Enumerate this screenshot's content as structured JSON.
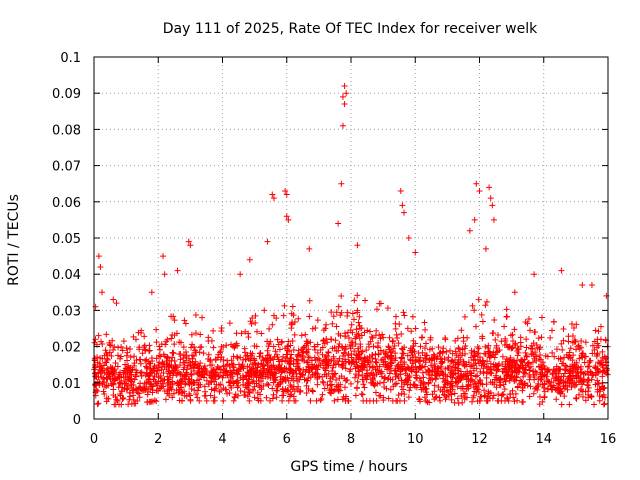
{
  "chart_data": {
    "type": "scatter",
    "title": "Day 111 of 2025, Rate Of TEC Index for receiver welk",
    "xlabel": "GPS time / hours",
    "ylabel": "ROTI / TECUs",
    "xlim": [
      0,
      16
    ],
    "ylim": [
      0,
      0.1
    ],
    "x_ticks": [
      0,
      2,
      4,
      6,
      8,
      10,
      12,
      14,
      16
    ],
    "x_tick_labels": [
      "0",
      "2",
      "4",
      "6",
      "8",
      "10",
      "12",
      "14",
      "16"
    ],
    "y_ticks": [
      0,
      0.01,
      0.02,
      0.03,
      0.04,
      0.05,
      0.06,
      0.07,
      0.08,
      0.09,
      0.1
    ],
    "y_tick_labels": [
      "0",
      "0.01",
      "0.02",
      "0.03",
      "0.04",
      "0.05",
      "0.06",
      "0.07",
      "0.08",
      "0.09",
      "0.1"
    ],
    "grid": true,
    "marker": "plus",
    "color": "#ff0000",
    "series": [
      {
        "name": "ROTI",
        "notable_points": [
          {
            "x": 0.05,
            "y": 0.031
          },
          {
            "x": 0.15,
            "y": 0.045
          },
          {
            "x": 0.2,
            "y": 0.042
          },
          {
            "x": 0.25,
            "y": 0.035
          },
          {
            "x": 0.6,
            "y": 0.033
          },
          {
            "x": 0.7,
            "y": 0.032
          },
          {
            "x": 1.8,
            "y": 0.035
          },
          {
            "x": 2.15,
            "y": 0.045
          },
          {
            "x": 2.2,
            "y": 0.04
          },
          {
            "x": 2.6,
            "y": 0.041
          },
          {
            "x": 2.95,
            "y": 0.049
          },
          {
            "x": 3.0,
            "y": 0.048
          },
          {
            "x": 4.55,
            "y": 0.04
          },
          {
            "x": 4.85,
            "y": 0.044
          },
          {
            "x": 5.4,
            "y": 0.049
          },
          {
            "x": 5.55,
            "y": 0.062
          },
          {
            "x": 5.6,
            "y": 0.061
          },
          {
            "x": 5.95,
            "y": 0.063
          },
          {
            "x": 6.0,
            "y": 0.062
          },
          {
            "x": 6.0,
            "y": 0.056
          },
          {
            "x": 6.05,
            "y": 0.055
          },
          {
            "x": 6.7,
            "y": 0.047
          },
          {
            "x": 7.6,
            "y": 0.054
          },
          {
            "x": 7.7,
            "y": 0.065
          },
          {
            "x": 7.75,
            "y": 0.081
          },
          {
            "x": 7.75,
            "y": 0.089
          },
          {
            "x": 7.8,
            "y": 0.092
          },
          {
            "x": 7.8,
            "y": 0.087
          },
          {
            "x": 7.85,
            "y": 0.09
          },
          {
            "x": 8.2,
            "y": 0.048
          },
          {
            "x": 9.55,
            "y": 0.063
          },
          {
            "x": 9.6,
            "y": 0.059
          },
          {
            "x": 9.65,
            "y": 0.057
          },
          {
            "x": 9.8,
            "y": 0.05
          },
          {
            "x": 10.0,
            "y": 0.046
          },
          {
            "x": 11.7,
            "y": 0.052
          },
          {
            "x": 11.85,
            "y": 0.055
          },
          {
            "x": 11.9,
            "y": 0.065
          },
          {
            "x": 12.0,
            "y": 0.063
          },
          {
            "x": 12.3,
            "y": 0.064
          },
          {
            "x": 12.35,
            "y": 0.061
          },
          {
            "x": 12.4,
            "y": 0.059
          },
          {
            "x": 12.45,
            "y": 0.055
          },
          {
            "x": 12.2,
            "y": 0.047
          },
          {
            "x": 13.1,
            "y": 0.035
          },
          {
            "x": 13.7,
            "y": 0.04
          },
          {
            "x": 14.55,
            "y": 0.041
          },
          {
            "x": 15.2,
            "y": 0.037
          },
          {
            "x": 15.5,
            "y": 0.037
          },
          {
            "x": 15.95,
            "y": 0.034
          }
        ],
        "baseline_profile": {
          "description": "dense point cloud sampled every ~30 s; typical ROTI level by hour (data units)",
          "hours": [
            0,
            1,
            2,
            3,
            4,
            5,
            6,
            7,
            8,
            9,
            10,
            11,
            12,
            13,
            14,
            15,
            16
          ],
          "median": [
            0.011,
            0.011,
            0.012,
            0.012,
            0.012,
            0.012,
            0.013,
            0.014,
            0.015,
            0.014,
            0.013,
            0.011,
            0.013,
            0.013,
            0.012,
            0.012,
            0.012
          ],
          "upper": [
            0.025,
            0.022,
            0.028,
            0.03,
            0.026,
            0.03,
            0.032,
            0.033,
            0.036,
            0.033,
            0.03,
            0.022,
            0.035,
            0.03,
            0.028,
            0.028,
            0.026
          ],
          "lower": [
            0.004,
            0.004,
            0.005,
            0.005,
            0.005,
            0.005,
            0.005,
            0.005,
            0.005,
            0.005,
            0.005,
            0.004,
            0.005,
            0.005,
            0.004,
            0.004,
            0.004
          ]
        }
      }
    ]
  }
}
